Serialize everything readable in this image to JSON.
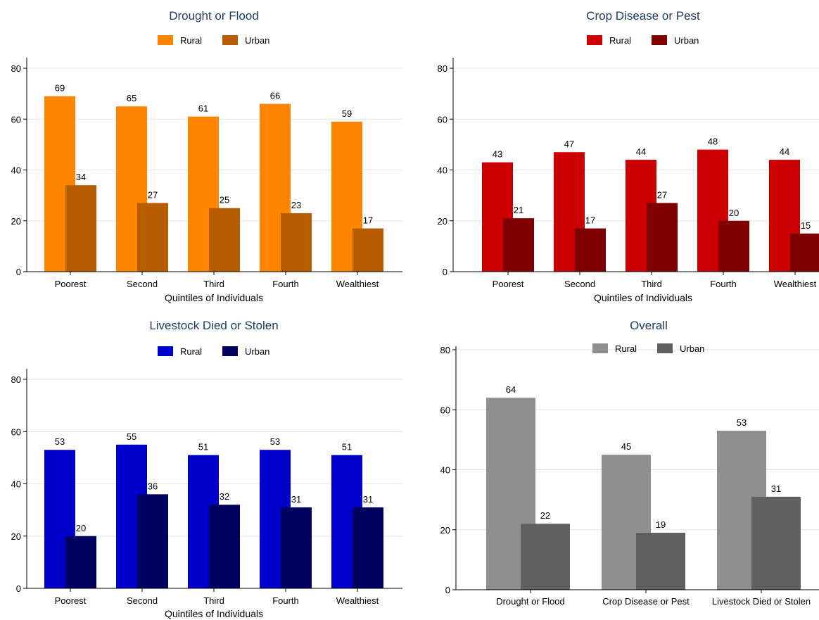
{
  "chart_data": [
    {
      "type": "bar",
      "title": "Drought or Flood",
      "xlabel": "Quintiles of Individuals",
      "ylabel": "",
      "ylim": [
        0,
        80
      ],
      "yticks": [
        0,
        20,
        40,
        60,
        80
      ],
      "grid": true,
      "legend_position": "top",
      "categories": [
        "Poorest",
        "Second",
        "Third",
        "Fourth",
        "Wealthiest"
      ],
      "series": [
        {
          "name": "Rural",
          "color": "#ff8500",
          "values": [
            69,
            65,
            61,
            66,
            59
          ]
        },
        {
          "name": "Urban",
          "color": "#b85c00",
          "values": [
            34,
            27,
            25,
            23,
            17
          ]
        }
      ]
    },
    {
      "type": "bar",
      "title": "Crop Disease or Pest",
      "xlabel": "Quintiles of Individuals",
      "ylabel": "",
      "ylim": [
        0,
        80
      ],
      "yticks": [
        0,
        20,
        40,
        60,
        80
      ],
      "grid": true,
      "legend_position": "top",
      "categories": [
        "Poorest",
        "Second",
        "Third",
        "Fourth",
        "Wealthiest"
      ],
      "series": [
        {
          "name": "Rural",
          "color": "#cc0000",
          "values": [
            43,
            47,
            44,
            48,
            44
          ]
        },
        {
          "name": "Urban",
          "color": "#7f0000",
          "values": [
            21,
            17,
            27,
            20,
            15
          ]
        }
      ]
    },
    {
      "type": "bar",
      "title": "Livestock Died or Stolen",
      "xlabel": "Quintiles of Individuals",
      "ylabel": "",
      "ylim": [
        0,
        80
      ],
      "yticks": [
        0,
        20,
        40,
        60,
        80
      ],
      "grid": true,
      "legend_position": "top",
      "categories": [
        "Poorest",
        "Second",
        "Third",
        "Fourth",
        "Wealthiest"
      ],
      "series": [
        {
          "name": "Rural",
          "color": "#0000cc",
          "values": [
            53,
            55,
            51,
            53,
            51
          ]
        },
        {
          "name": "Urban",
          "color": "#00005f",
          "values": [
            20,
            36,
            32,
            31,
            31
          ]
        }
      ]
    },
    {
      "type": "bar",
      "title": "Overall",
      "xlabel": "",
      "ylabel": "",
      "ylim": [
        0,
        80
      ],
      "yticks": [
        0,
        20,
        40,
        60,
        80
      ],
      "grid": true,
      "legend_position": "top",
      "categories": [
        "Drought or Flood",
        "Crop Disease or Pest",
        "Livestock Died or Stolen"
      ],
      "series": [
        {
          "name": "Rural",
          "color": "#8f8f8f",
          "values": [
            64,
            45,
            53
          ]
        },
        {
          "name": "Urban",
          "color": "#606060",
          "values": [
            22,
            19,
            31
          ]
        }
      ]
    }
  ]
}
